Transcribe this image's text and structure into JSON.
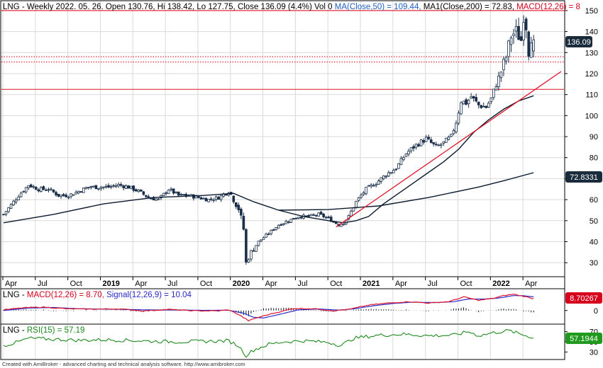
{
  "colors": {
    "background": "#ffffff",
    "grid": "#d9d9d9",
    "border": "#000000",
    "up_candle": "#ffffff",
    "down_candle": "#1a2f4a",
    "candle_outline": "#1a2f4a",
    "ma50": "#0b1a2e",
    "ma200": "#0b1a2e",
    "trendline": "#e0142a",
    "hline": "#e0142a",
    "macd": "#e0142a",
    "signal": "#2a2acb",
    "hist": "#0b1a2e",
    "rsi": "#1e8a1e",
    "badge_dark": "#1a2b3c",
    "badge_red": "#d6001c",
    "badge_green": "#1f9a1f"
  },
  "header": {
    "p1": "LNG - Weekly 2022. 05. 26. Open 130.76, Hi 138.42, Lo 127.75, Close 136.09 (4.4%) Vol 0",
    "p2": "MA(Close,50) = 109.44,",
    "p3": "MA1(Close,200) = 72.83,",
    "p4": "MACD(12,26) = 8"
  },
  "macd_header": {
    "p1": "LNG - ",
    "p2": "MACD(12,26) = 8.70,",
    "p3": "Signal(12,26,9) = 10.04"
  },
  "rsi_header": {
    "p1": "LNG - ",
    "p2": "RSI(15) = 57.19"
  },
  "badges": {
    "price": "136.09",
    "ma200": "72.8331",
    "macd": "8.70267",
    "rsi": "57.1944"
  },
  "footer": "Created with AmiBroker - advanced charting and technical analysis software. http://www.amibroker.com",
  "x_axis": [
    {
      "label": "Apr",
      "w": 0,
      "bold": false
    },
    {
      "label": "Jul",
      "w": 13,
      "bold": false
    },
    {
      "label": "Oct",
      "w": 26,
      "bold": false
    },
    {
      "label": "2019",
      "w": 39,
      "bold": true
    },
    {
      "label": "Apr",
      "w": 52,
      "bold": false
    },
    {
      "label": "Jul",
      "w": 65,
      "bold": false
    },
    {
      "label": "Oct",
      "w": 78,
      "bold": false
    },
    {
      "label": "2020",
      "w": 91,
      "bold": true
    },
    {
      "label": "Apr",
      "w": 104,
      "bold": false
    },
    {
      "label": "Jul",
      "w": 117,
      "bold": false
    },
    {
      "label": "Oct",
      "w": 130,
      "bold": false
    },
    {
      "label": "2021",
      "w": 143,
      "bold": true
    },
    {
      "label": "Apr",
      "w": 156,
      "bold": false
    },
    {
      "label": "Jul",
      "w": 169,
      "bold": false
    },
    {
      "label": "Oct",
      "w": 182,
      "bold": false
    },
    {
      "label": "2022",
      "w": 195,
      "bold": true
    },
    {
      "label": "Apr",
      "w": 208,
      "bold": false
    }
  ],
  "chart_data": {
    "type": "candlestick",
    "title": "LNG - Weekly",
    "price_axis": {
      "ylim": [
        24,
        153
      ],
      "ticks": [
        30,
        40,
        50,
        60,
        70,
        80,
        90,
        100,
        110,
        120,
        130,
        140,
        150
      ]
    },
    "macd_axis": {
      "ylim": [
        -9,
        15
      ],
      "ticks": [
        0
      ]
    },
    "rsi_axis": {
      "ylim": [
        18,
        82
      ],
      "ticks": [
        30,
        50,
        70
      ]
    },
    "close_anchors": [
      [
        0,
        53
      ],
      [
        6,
        62
      ],
      [
        10,
        67
      ],
      [
        14,
        65
      ],
      [
        18,
        65
      ],
      [
        22,
        62
      ],
      [
        26,
        62
      ],
      [
        30,
        64
      ],
      [
        34,
        66
      ],
      [
        38,
        66
      ],
      [
        42,
        66
      ],
      [
        46,
        67
      ],
      [
        50,
        66
      ],
      [
        54,
        64
      ],
      [
        58,
        61
      ],
      [
        62,
        60
      ],
      [
        66,
        65
      ],
      [
        70,
        62
      ],
      [
        74,
        62
      ],
      [
        78,
        61
      ],
      [
        82,
        60
      ],
      [
        86,
        61
      ],
      [
        90,
        64
      ],
      [
        92,
        61
      ],
      [
        94,
        56
      ],
      [
        96,
        46
      ],
      [
        97,
        30
      ],
      [
        99,
        35
      ],
      [
        102,
        40
      ],
      [
        106,
        44
      ],
      [
        110,
        48
      ],
      [
        114,
        50
      ],
      [
        118,
        52
      ],
      [
        122,
        52
      ],
      [
        126,
        53
      ],
      [
        130,
        51
      ],
      [
        134,
        48
      ],
      [
        136,
        49
      ],
      [
        138,
        52
      ],
      [
        141,
        59
      ],
      [
        145,
        65
      ],
      [
        149,
        68
      ],
      [
        153,
        72
      ],
      [
        157,
        75
      ],
      [
        161,
        82
      ],
      [
        165,
        86
      ],
      [
        169,
        89
      ],
      [
        173,
        85
      ],
      [
        176,
        87
      ],
      [
        179,
        90
      ],
      [
        181,
        97
      ],
      [
        183,
        107
      ],
      [
        185,
        106
      ],
      [
        187,
        109
      ],
      [
        190,
        105
      ],
      [
        193,
        104
      ],
      [
        195,
        108
      ],
      [
        197,
        115
      ],
      [
        199,
        121
      ],
      [
        201,
        128
      ],
      [
        203,
        138
      ],
      [
        205,
        140
      ],
      [
        207,
        136
      ],
      [
        208,
        148
      ],
      [
        209,
        143
      ],
      [
        210,
        131
      ],
      [
        211,
        138
      ],
      [
        212,
        136
      ]
    ],
    "ma50": [
      [
        0,
        49
      ],
      [
        20,
        53
      ],
      [
        40,
        58
      ],
      [
        60,
        61
      ],
      [
        80,
        62
      ],
      [
        92,
        63
      ],
      [
        100,
        59
      ],
      [
        110,
        55
      ],
      [
        120,
        52
      ],
      [
        130,
        50
      ],
      [
        136,
        49
      ],
      [
        141,
        50
      ],
      [
        146,
        52
      ],
      [
        152,
        58
      ],
      [
        158,
        63
      ],
      [
        164,
        68
      ],
      [
        170,
        73
      ],
      [
        176,
        78
      ],
      [
        182,
        84
      ],
      [
        188,
        92
      ],
      [
        194,
        98
      ],
      [
        200,
        103
      ],
      [
        206,
        107
      ],
      [
        212,
        109.44
      ]
    ],
    "ma200": [
      [
        110,
        55
      ],
      [
        130,
        55.3
      ],
      [
        150,
        57
      ],
      [
        170,
        61
      ],
      [
        190,
        66
      ],
      [
        200,
        69
      ],
      [
        212,
        72.83
      ]
    ],
    "trendline": [
      [
        133,
        47
      ],
      [
        223,
        121
      ]
    ],
    "hlines": [
      {
        "y": 150,
        "style": "solid"
      },
      {
        "y": 128,
        "style": "dotted"
      },
      {
        "y": 125.5,
        "style": "dotted"
      },
      {
        "y": 112.5,
        "style": "solid"
      }
    ],
    "rsi_anchors": [
      [
        0,
        42
      ],
      [
        6,
        50
      ],
      [
        10,
        57
      ],
      [
        20,
        55
      ],
      [
        30,
        53
      ],
      [
        40,
        54
      ],
      [
        50,
        53
      ],
      [
        60,
        51
      ],
      [
        70,
        50
      ],
      [
        80,
        51
      ],
      [
        90,
        52
      ],
      [
        94,
        42
      ],
      [
        97,
        23
      ],
      [
        100,
        34
      ],
      [
        106,
        45
      ],
      [
        112,
        50
      ],
      [
        120,
        52
      ],
      [
        130,
        49
      ],
      [
        135,
        43
      ],
      [
        140,
        57
      ],
      [
        150,
        63
      ],
      [
        160,
        65
      ],
      [
        170,
        62
      ],
      [
        180,
        63
      ],
      [
        186,
        70
      ],
      [
        190,
        62
      ],
      [
        196,
        68
      ],
      [
        202,
        72
      ],
      [
        206,
        66
      ],
      [
        210,
        61
      ],
      [
        212,
        57
      ]
    ],
    "macd_anchors": [
      [
        0,
        0.5
      ],
      [
        8,
        2.0
      ],
      [
        16,
        2.5
      ],
      [
        26,
        1.2
      ],
      [
        36,
        1.0
      ],
      [
        46,
        1.2
      ],
      [
        56,
        -0.3
      ],
      [
        66,
        0.8
      ],
      [
        76,
        -0.2
      ],
      [
        86,
        -0.3
      ],
      [
        90,
        0.5
      ],
      [
        94,
        -3
      ],
      [
        98,
        -7.5
      ],
      [
        102,
        -5
      ],
      [
        108,
        -2
      ],
      [
        116,
        1.5
      ],
      [
        124,
        1.3
      ],
      [
        132,
        -0.2
      ],
      [
        138,
        0.8
      ],
      [
        146,
        4
      ],
      [
        154,
        5.5
      ],
      [
        162,
        6.5
      ],
      [
        170,
        5.5
      ],
      [
        178,
        6.5
      ],
      [
        184,
        10
      ],
      [
        190,
        7.5
      ],
      [
        196,
        9
      ],
      [
        200,
        11
      ],
      [
        204,
        12
      ],
      [
        208,
        10.5
      ],
      [
        212,
        8.7
      ]
    ],
    "signal_anchors": [
      [
        0,
        0
      ],
      [
        10,
        1.8
      ],
      [
        20,
        2.2
      ],
      [
        30,
        1.3
      ],
      [
        40,
        1.0
      ],
      [
        50,
        0.7
      ],
      [
        60,
        0.4
      ],
      [
        70,
        0.4
      ],
      [
        80,
        0.1
      ],
      [
        90,
        0.2
      ],
      [
        96,
        -2
      ],
      [
        100,
        -5
      ],
      [
        104,
        -5.5
      ],
      [
        110,
        -3
      ],
      [
        118,
        0.5
      ],
      [
        126,
        1.1
      ],
      [
        134,
        0.3
      ],
      [
        140,
        1.2
      ],
      [
        148,
        3.5
      ],
      [
        156,
        5.2
      ],
      [
        164,
        6.2
      ],
      [
        172,
        5.8
      ],
      [
        180,
        6.5
      ],
      [
        186,
        8.5
      ],
      [
        192,
        8.4
      ],
      [
        198,
        9.2
      ],
      [
        204,
        11
      ],
      [
        208,
        10.9
      ],
      [
        212,
        10.04
      ]
    ],
    "last_values": {
      "open": 130.76,
      "high": 138.42,
      "low": 127.75,
      "close": 136.09,
      "ma50": 109.44,
      "ma200": 72.83,
      "macd": 8.7,
      "signal": 10.04,
      "rsi": 57.19
    }
  }
}
